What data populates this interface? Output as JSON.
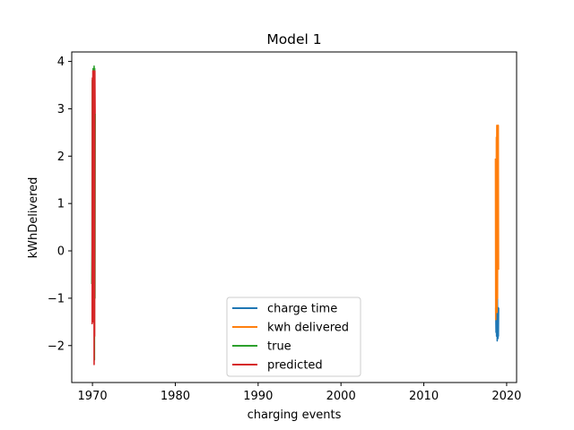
{
  "chart_data": {
    "type": "line",
    "title": "Model 1",
    "xlabel": "charging events",
    "ylabel": "kWhDelivered",
    "xlim": [
      1967.5,
      2021.2
    ],
    "ylim": [
      -2.78,
      4.2
    ],
    "xticks": [
      1970,
      1980,
      1990,
      2000,
      2010,
      2020
    ],
    "yticks": [
      -2,
      -1,
      0,
      1,
      2,
      3,
      4
    ],
    "xtick_labels": [
      "1970",
      "1980",
      "1990",
      "2000",
      "2010",
      "2020"
    ],
    "ytick_labels": [
      "−2",
      "−1",
      "0",
      "1",
      "2",
      "3",
      "4"
    ],
    "grid": false,
    "legend_position": "bottom-center",
    "series": [
      {
        "name": "charge time",
        "color": "#1f77b4",
        "x": [
          2018.68,
          2018.72,
          2018.75,
          2018.78,
          2018.8,
          2018.83,
          2018.86,
          2018.88,
          2018.9,
          2018.92,
          2018.95,
          2018.97,
          2019.0,
          2019.03
        ],
        "y": [
          -1.2,
          -1.72,
          -0.9,
          -1.8,
          1.3,
          -1.5,
          -1.9,
          -0.6,
          -1.7,
          -1.25,
          -1.85,
          -1.2,
          -1.8,
          -1.2
        ]
      },
      {
        "name": "kwh delivered",
        "color": "#ff7f0e",
        "x": [
          2018.65,
          2018.68,
          2018.7,
          2018.73,
          2018.76,
          2018.78,
          2018.81,
          2018.84,
          2018.87,
          2018.9,
          2018.93,
          2018.96,
          2018.99,
          2019.02
        ],
        "y": [
          1.95,
          -1.45,
          1.5,
          -1.2,
          2.4,
          0.3,
          2.65,
          -1.3,
          2.2,
          -1.0,
          2.65,
          0.6,
          2.65,
          -0.4
        ]
      },
      {
        "name": "true",
        "color": "#2ca02c",
        "x": [
          1969.92,
          1969.95,
          1969.98,
          1970.0,
          1970.03,
          1970.05,
          1970.08,
          1970.11,
          1970.14,
          1970.17,
          1970.2,
          1970.24,
          1970.27,
          1970.3,
          1970.33
        ],
        "y": [
          -0.7,
          0.1,
          3.6,
          -1.2,
          3.3,
          0.5,
          3.85,
          -1.5,
          3.8,
          0.2,
          3.9,
          -2.3,
          3.85,
          -1.0,
          2.9
        ]
      },
      {
        "name": "predicted",
        "color": "#d62728",
        "x": [
          1969.96,
          1969.99,
          1970.02,
          1970.05,
          1970.08,
          1970.11,
          1970.14,
          1970.17,
          1970.2,
          1970.23,
          1970.26,
          1970.29,
          1970.32
        ],
        "y": [
          -1.55,
          3.65,
          -0.3,
          3.8,
          -1.5,
          3.75,
          0.6,
          3.8,
          -2.4,
          3.7,
          -1.8,
          3.8,
          2.9
        ]
      }
    ]
  }
}
